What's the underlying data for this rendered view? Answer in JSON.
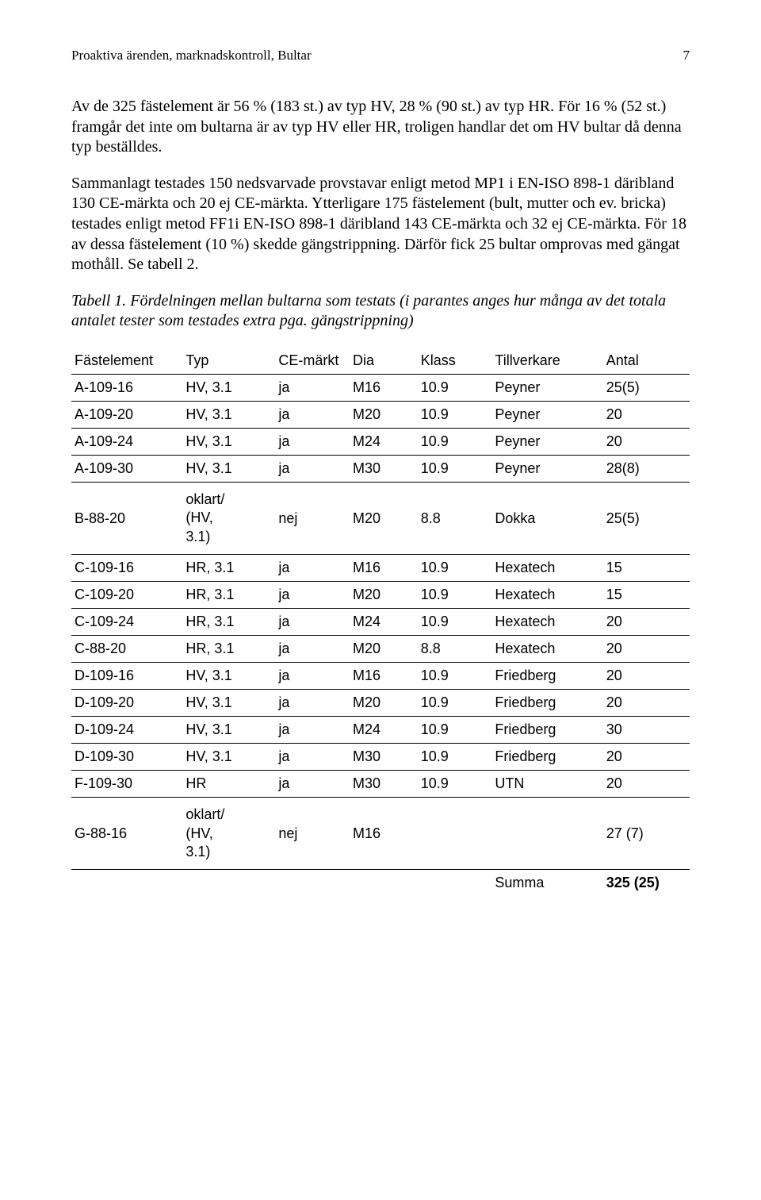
{
  "header": {
    "title": "Proaktiva ärenden, marknadskontroll, Bultar",
    "page": "7"
  },
  "paragraphs": {
    "p1": "Av de 325 fästelement är 56 % (183 st.) av typ HV, 28 % (90 st.) av typ HR. För 16 % (52 st.) framgår det inte om bultarna är av typ HV eller HR, troligen handlar det om HV bultar då denna typ beställdes.",
    "p2": "Sammanlagt testades 150 nedsvarvade provstavar enligt metod MP1 i EN-ISO 898-1 däribland 130 CE-märkta och 20 ej CE-märkta. Ytterligare 175 fästelement (bult, mutter och ev. bricka) testades enligt metod FF1i EN-ISO 898-1 däribland 143 CE-märkta och 32 ej CE-märkta. För 18 av dessa fästelement (10 %) skedde gängstrippning. Därför fick 25 bultar omprovas med gängat mothåll. Se tabell 2.",
    "caption": "Tabell 1. Fördelningen mellan bultarna som testats (i parantes anges hur många av det totala antalet tester som testades extra pga. gängstrippning)"
  },
  "table": {
    "columns": [
      "Fästelement",
      "Typ",
      "CE-märkt",
      "Dia",
      "Klass",
      "Tillverkare",
      "Antal"
    ],
    "rows": [
      [
        "A-109-16",
        "HV, 3.1",
        "ja",
        "M16",
        "10.9",
        "Peyner",
        "25(5)"
      ],
      [
        "A-109-20",
        "HV, 3.1",
        "ja",
        "M20",
        "10.9",
        "Peyner",
        "20"
      ],
      [
        "A-109-24",
        "HV, 3.1",
        "ja",
        "M24",
        "10.9",
        "Peyner",
        "20"
      ],
      [
        "A-109-30",
        "HV, 3.1",
        "ja",
        "M30",
        "10.9",
        "Peyner",
        "28(8)"
      ],
      [
        "B-88-20",
        "oklart/\n(HV,\n3.1)",
        "nej",
        "M20",
        "8.8",
        "Dokka",
        "25(5)"
      ],
      [
        "C-109-16",
        "HR, 3.1",
        "ja",
        "M16",
        "10.9",
        "Hexatech",
        "15"
      ],
      [
        "C-109-20",
        "HR, 3.1",
        "ja",
        "M20",
        "10.9",
        "Hexatech",
        "15"
      ],
      [
        "C-109-24",
        "HR, 3.1",
        "ja",
        "M24",
        "10.9",
        "Hexatech",
        "20"
      ],
      [
        "C-88-20",
        "HR, 3.1",
        "ja",
        "M20",
        "8.8",
        "Hexatech",
        "20"
      ],
      [
        "D-109-16",
        "HV, 3.1",
        "ja",
        "M16",
        "10.9",
        "Friedberg",
        "20"
      ],
      [
        "D-109-20",
        "HV, 3.1",
        "ja",
        "M20",
        "10.9",
        "Friedberg",
        "20"
      ],
      [
        "D-109-24",
        "HV, 3.1",
        "ja",
        "M24",
        "10.9",
        "Friedberg",
        "30"
      ],
      [
        "D-109-30",
        "HV, 3.1",
        "ja",
        "M30",
        "10.9",
        "Friedberg",
        "20"
      ],
      [
        "F-109-30",
        "HR",
        "ja",
        "M30",
        "10.9",
        "UTN",
        "20"
      ],
      [
        "G-88-16",
        "oklart/\n(HV,\n3.1)",
        "nej",
        "M16",
        "",
        "",
        "27 (7)"
      ]
    ],
    "summa_label": "Summa",
    "summa_value": "325 (25)"
  }
}
